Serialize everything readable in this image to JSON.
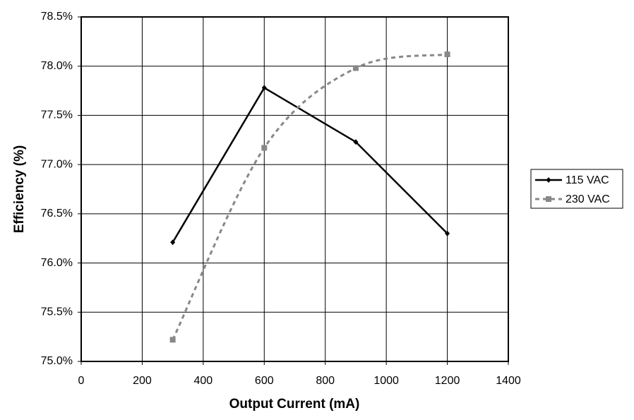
{
  "chart_data": {
    "type": "line",
    "x_label": "Output Current (mA)",
    "y_label": "Efficiency (%)",
    "x": [
      300,
      600,
      900,
      1200
    ],
    "series": [
      {
        "name": "115 VAC",
        "color": "#000000",
        "dash": false,
        "marker": "diamond",
        "values": [
          76.21,
          77.78,
          77.23,
          76.3
        ]
      },
      {
        "name": "230 VAC",
        "color": "#888888",
        "dash": true,
        "marker": "square",
        "values": [
          75.22,
          77.17,
          77.98,
          78.12
        ]
      }
    ],
    "xlim": [
      0,
      1400
    ],
    "xticks": [
      0,
      200,
      400,
      600,
      800,
      1000,
      1200,
      1400
    ],
    "ylim": [
      75,
      78.5
    ],
    "yticks": [
      {
        "value": 75,
        "label": "75.0%"
      },
      {
        "value": 75.5,
        "label": "75.5%"
      },
      {
        "value": 76,
        "label": "76.0%"
      },
      {
        "value": 76.5,
        "label": "76.5%"
      },
      {
        "value": 77,
        "label": "77.0%"
      },
      {
        "value": 77.5,
        "label": "77.5%"
      },
      {
        "value": 78,
        "label": "78.0%"
      },
      {
        "value": 78.5,
        "label": "78.5%"
      }
    ],
    "grid": true,
    "legend": "right"
  }
}
